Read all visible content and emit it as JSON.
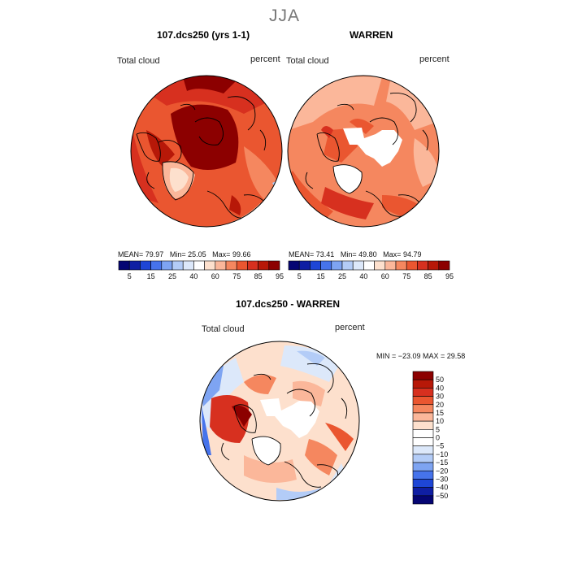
{
  "season": "JJA",
  "panels": [
    {
      "title": "107.dcs250 (yrs 1-1)",
      "variable": "Total cloud",
      "units": "percent",
      "stats": {
        "mean_label": "MEAN=",
        "mean": "79.97",
        "min_label": "Min=",
        "min": "25.05",
        "max_label": "Max=",
        "max": "99.66"
      }
    },
    {
      "title": "WARREN",
      "variable": "Total cloud",
      "units": "percent",
      "stats": {
        "mean_label": "MEAN=",
        "mean": "73.41",
        "min_label": "Min=",
        "min": "49.80",
        "max_label": "Max=",
        "max": "94.79"
      }
    },
    {
      "title": "107.dcs250 - WARREN",
      "variable": "Total cloud",
      "units": "percent",
      "minmax": "MIN = −23.09 MAX =   29.58"
    }
  ],
  "colorbar_top": {
    "labels": [
      "5",
      "15",
      "25",
      "40",
      "60",
      "75",
      "85",
      "95"
    ],
    "colors": [
      "#050573",
      "#0f1ea3",
      "#1e46d6",
      "#4673eb",
      "#7ea4f2",
      "#b3ccf7",
      "#dce8fa",
      "#ffffff",
      "#fde0cd",
      "#fbb79a",
      "#f5875f",
      "#ea5630",
      "#d7301f",
      "#b71808",
      "#8c0000"
    ]
  },
  "colorbar_diff": {
    "labels": [
      "50",
      "40",
      "30",
      "20",
      "15",
      "10",
      "5",
      "0",
      "−5",
      "−10",
      "−15",
      "−20",
      "−30",
      "−40",
      "−50"
    ],
    "colors": [
      "#8c0000",
      "#b71808",
      "#d7301f",
      "#ea5630",
      "#f5875f",
      "#fbb79a",
      "#fde0cd",
      "#ffffff",
      "#ffffff",
      "#dce8fa",
      "#b3ccf7",
      "#7ea4f2",
      "#4673eb",
      "#1e46d6",
      "#0f1ea3",
      "#050573"
    ]
  }
}
